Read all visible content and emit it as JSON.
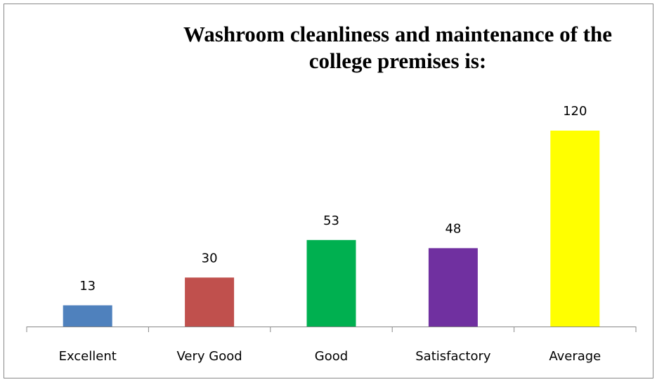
{
  "chart_data": {
    "type": "bar",
    "title": [
      "Washroom cleanliness and maintenance of the",
      "college premises is:"
    ],
    "categories": [
      "Excellent",
      "Very Good",
      "Good",
      "Satisfactory",
      "Average"
    ],
    "values": [
      13,
      30,
      53,
      48,
      120
    ],
    "colors": [
      "#4f81bd",
      "#c0504d",
      "#00b050",
      "#7030a0",
      "#ffff00"
    ]
  }
}
